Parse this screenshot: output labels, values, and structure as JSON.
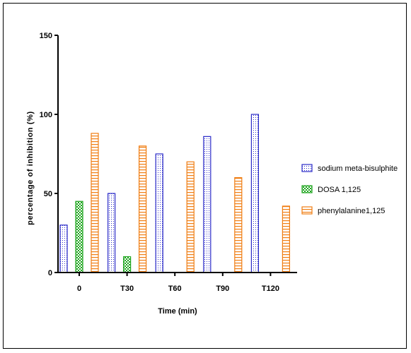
{
  "chart_data": {
    "type": "bar",
    "categories": [
      "0",
      "T30",
      "T60",
      "T90",
      "T120"
    ],
    "series": [
      {
        "name": "sodium meta-bisulphite",
        "values": [
          30,
          50,
          75,
          86,
          100
        ],
        "color": "#2b2bc8",
        "pattern": "dots"
      },
      {
        "name": "DOSA 1,125",
        "values": [
          45,
          10,
          0,
          0,
          0
        ],
        "color": "#1fa51f",
        "pattern": "checker"
      },
      {
        "name": "phenylalanine1,125",
        "values": [
          88,
          80,
          70,
          60,
          42
        ],
        "color": "#f07d12",
        "pattern": "stripes"
      }
    ],
    "ylim": [
      0,
      150
    ],
    "yticks": [
      "0",
      "50",
      "100",
      "150"
    ],
    "xlabel": "Time (min)",
    "ylabel": "percentage of inhibition (%)",
    "grid": false,
    "legend_position": "right"
  }
}
